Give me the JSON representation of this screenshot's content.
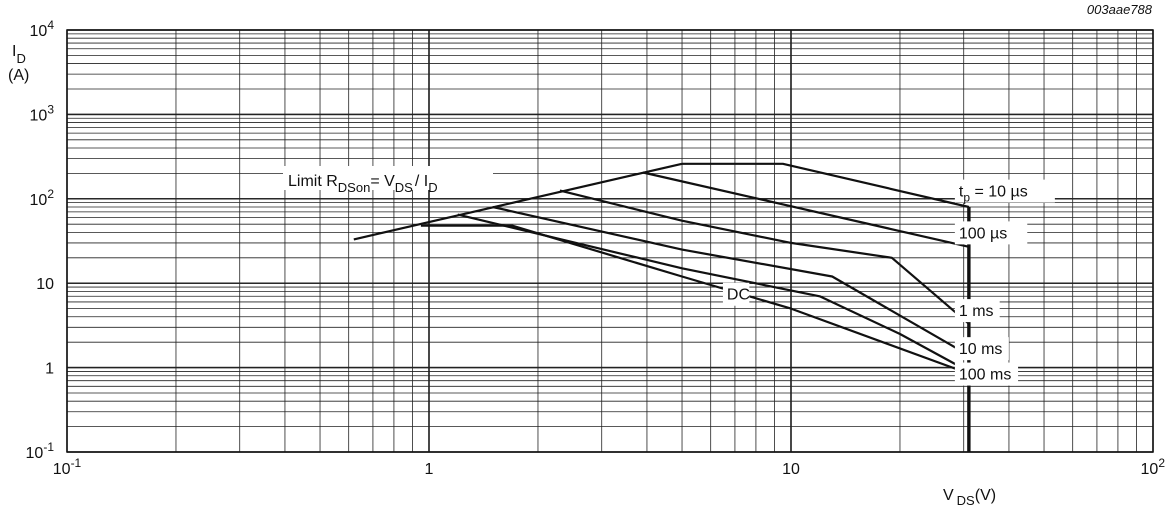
{
  "chart_data": {
    "type": "line",
    "figure_code": "003aae788",
    "x_scale": "log",
    "y_scale": "log",
    "xlim": [
      0.1,
      100
    ],
    "ylim": [
      0.1,
      10000
    ],
    "grid": true,
    "x_ticks": [
      {
        "value": 0.1,
        "mant": "10",
        "exp": "-1"
      },
      {
        "value": 1,
        "mant": "1",
        "exp": ""
      },
      {
        "value": 10,
        "mant": "10",
        "exp": ""
      },
      {
        "value": 100,
        "mant": "10",
        "exp": "2"
      }
    ],
    "y_ticks": [
      {
        "value": 0.1,
        "mant": "10",
        "exp": "-1"
      },
      {
        "value": 1,
        "mant": "1",
        "exp": ""
      },
      {
        "value": 10,
        "mant": "10",
        "exp": ""
      },
      {
        "value": 100,
        "mant": "10",
        "exp": "2"
      },
      {
        "value": 1000,
        "mant": "10",
        "exp": "3"
      },
      {
        "value": 10000,
        "mant": "10",
        "exp": "4"
      }
    ],
    "xlabel": {
      "main": "V",
      "sub": "DS",
      "unit": "(V)"
    },
    "ylabel": {
      "main": "I",
      "sub": "D",
      "unit": "(A)"
    },
    "limit_label": {
      "prefix": "Limit R",
      "sub1": "DSon",
      "eq": "= V",
      "sub2": "DS",
      "slash": "/ I",
      "sub3": "D"
    },
    "series": [
      {
        "name": "Limit RDSon",
        "points": [
          [
            0.62,
            33
          ],
          [
            5.0,
            260
          ]
        ]
      },
      {
        "name": "tp = 10 µs",
        "points": [
          [
            5.0,
            260
          ],
          [
            9.5,
            260
          ],
          [
            31,
            80
          ]
        ]
      },
      {
        "name": "100 µs",
        "points": [
          [
            3.9,
            205
          ],
          [
            31,
            27
          ]
        ]
      },
      {
        "name": "1 ms",
        "points": [
          [
            2.3,
            125
          ],
          [
            5,
            55
          ],
          [
            10,
            30
          ],
          [
            19,
            20
          ],
          [
            31,
            3.3
          ]
        ]
      },
      {
        "name": "10 ms",
        "points": [
          [
            1.5,
            80
          ],
          [
            5,
            25
          ],
          [
            13,
            12
          ],
          [
            31,
            1.4
          ]
        ]
      },
      {
        "name": "100 ms",
        "points": [
          [
            1.2,
            65
          ],
          [
            5,
            15
          ],
          [
            12,
            7
          ],
          [
            20,
            2.5
          ],
          [
            31,
            0.9
          ]
        ]
      },
      {
        "name": "DC",
        "points": [
          [
            0.95,
            48
          ],
          [
            1.7,
            48
          ],
          [
            5,
            12
          ],
          [
            10,
            5
          ],
          [
            31,
            0.85
          ]
        ]
      }
    ],
    "vertical_limit": {
      "x": 31,
      "y_from": 0.1,
      "y_to": 80
    },
    "annotations": [
      {
        "text": "t",
        "sub": "p",
        "rest": " = 10 µs",
        "x": 31,
        "y": 125
      },
      {
        "text": "100  µs",
        "sub": "",
        "rest": "",
        "x": 31,
        "y": 40
      },
      {
        "text": "1 ms",
        "sub": "",
        "rest": "",
        "x": 31,
        "y": 4.8
      },
      {
        "text": "10 ms",
        "sub": "",
        "rest": "",
        "x": 31,
        "y": 1.7
      },
      {
        "text": "100 ms",
        "sub": "",
        "rest": "",
        "x": 31,
        "y": 0.85
      },
      {
        "text": "DC",
        "sub": "",
        "rest": "",
        "x": 7,
        "y": 7.5
      }
    ]
  }
}
